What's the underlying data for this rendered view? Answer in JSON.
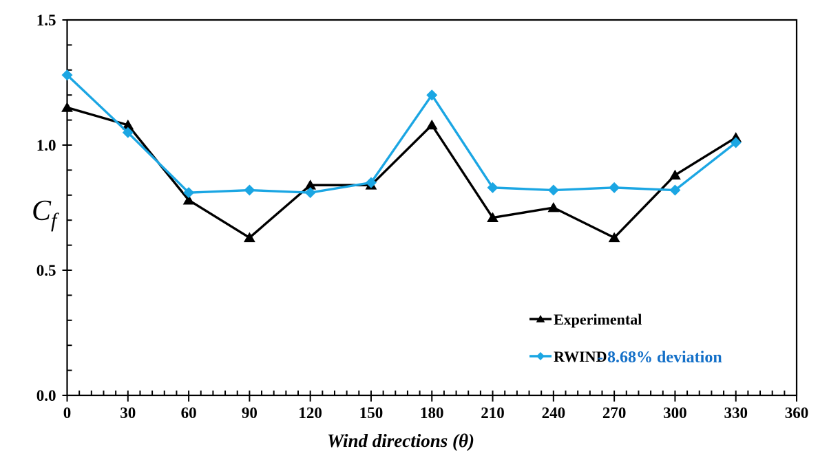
{
  "chart_data": {
    "type": "line",
    "title": "",
    "xlabel": "Wind directions (θ)",
    "ylabel_main": "C",
    "ylabel_sub": "f",
    "xlim": [
      0,
      360
    ],
    "ylim": [
      0.0,
      1.5
    ],
    "x_major_tick_step": 30,
    "x_minor_tick_step": 6,
    "y_major_tick_step": 0.5,
    "y_minor_tick_step": 0.1,
    "x_tick_labels": [
      "0",
      "30",
      "60",
      "90",
      "120",
      "150",
      "180",
      "210",
      "240",
      "270",
      "300",
      "330",
      "360"
    ],
    "y_tick_labels": [
      "0.0",
      "0.5",
      "1.0",
      "1.5"
    ],
    "grid": false,
    "x": [
      0,
      30,
      60,
      90,
      120,
      150,
      180,
      210,
      240,
      270,
      300,
      330
    ],
    "series": [
      {
        "name": "Experimental",
        "color": "#000000",
        "marker": "triangle",
        "values": [
          1.15,
          1.08,
          0.78,
          0.63,
          0.84,
          0.84,
          1.08,
          0.71,
          0.75,
          0.63,
          0.88,
          1.03
        ]
      },
      {
        "name": "RWIND",
        "color": "#1BA6E3",
        "marker": "diamond",
        "values": [
          1.28,
          1.05,
          0.81,
          0.82,
          0.81,
          0.85,
          1.2,
          0.83,
          0.82,
          0.83,
          0.82,
          1.01
        ]
      }
    ],
    "legend": {
      "position": "inside-right-lower",
      "entries": [
        {
          "label": "Experimental",
          "label_color": "#000000",
          "suffix": "",
          "suffix_color": "#000000"
        },
        {
          "label": "RWIND",
          "label_color": "#000000",
          "suffix": "- 8.68% deviation",
          "suffix_color": "#1470C8"
        }
      ]
    },
    "colors": {
      "axis": "#000000",
      "experimental_series": "#000000",
      "rwind_series": "#1BA6E3",
      "deviation_text": "#1470C8"
    }
  }
}
